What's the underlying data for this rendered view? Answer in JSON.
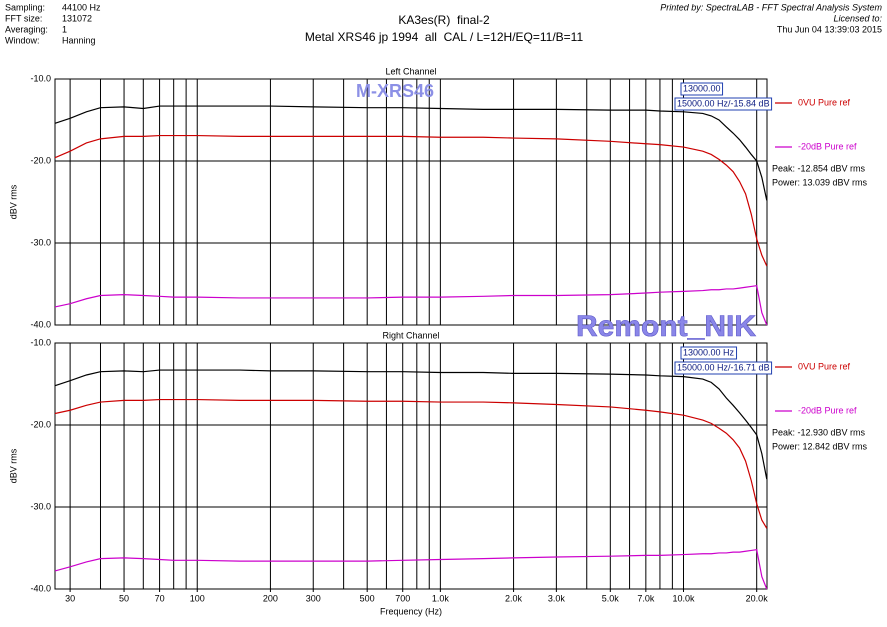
{
  "header": {
    "info_labels": [
      "Sampling:",
      "FFT size:",
      "Averaging:",
      "Window:"
    ],
    "info_values": [
      "44100 Hz",
      "131072",
      "1",
      "Hanning"
    ],
    "title": "KA3es(R)  final-2",
    "subtitle": "Metal XRS46 jp 1994  all  CAL / L=12H/EQ=11/B=11",
    "printed_by": "Printed by: SpectraLAB - FFT Spectral Analysis System",
    "licensed_to": "Licensed to:",
    "date": "Thu Jun 04 13:39:03 2015"
  },
  "watermarks": [
    "M-XRS46",
    "Remont_NIK"
  ],
  "chart_data": [
    {
      "type": "line",
      "title": "Left Channel",
      "ylabel": "dBV rms",
      "xscale": "log",
      "x": [
        26,
        30,
        35,
        40,
        50,
        60,
        70,
        80,
        100,
        150,
        200,
        300,
        500,
        700,
        1000,
        1500,
        2000,
        3000,
        5000,
        7000,
        8000,
        10000,
        12000,
        13000,
        14000,
        15000,
        16000,
        17000,
        18000,
        19000,
        20000,
        21000,
        22000
      ],
      "xlim": [
        26,
        22050
      ],
      "ylim": [
        -40,
        -10
      ],
      "yticks": [
        {
          "value": -40,
          "label": "-40.0"
        },
        {
          "value": -30,
          "label": "-30.0"
        },
        {
          "value": -20,
          "label": "-20.0"
        },
        {
          "value": -10,
          "label": "-10.0"
        }
      ],
      "xgrid": [
        30,
        40,
        50,
        60,
        70,
        80,
        90,
        100,
        200,
        300,
        400,
        500,
        600,
        700,
        800,
        900,
        1000,
        2000,
        3000,
        4000,
        5000,
        6000,
        7000,
        8000,
        9000,
        10000,
        20000
      ],
      "series": [
        {
          "color": "#000000",
          "values": [
            -15.4,
            -14.8,
            -14.0,
            -13.5,
            -13.4,
            -13.6,
            -13.3,
            -13.3,
            -13.3,
            -13.3,
            -13.3,
            -13.4,
            -13.5,
            -13.5,
            -13.6,
            -13.7,
            -13.7,
            -13.7,
            -13.8,
            -13.8,
            -13.9,
            -14.0,
            -14.2,
            -14.5,
            -15.0,
            -15.84,
            -16.6,
            -17.4,
            -18.3,
            -19.2,
            -20.0,
            -22.0,
            -24.8
          ]
        },
        {
          "name": "0VU Pure ref",
          "color": "#cc0000",
          "values": [
            -19.6,
            -18.8,
            -17.8,
            -17.3,
            -17.0,
            -17.0,
            -16.9,
            -16.9,
            -16.9,
            -17.0,
            -17.0,
            -17.0,
            -17.0,
            -17.0,
            -17.1,
            -17.1,
            -17.2,
            -17.3,
            -17.6,
            -17.9,
            -18.0,
            -18.3,
            -18.8,
            -19.2,
            -19.8,
            -20.5,
            -21.3,
            -22.5,
            -24.0,
            -26.5,
            -29.5,
            -31.5,
            -32.8
          ]
        },
        {
          "name": "-20dB Pure ref",
          "color": "#cc00cc",
          "values": [
            -37.8,
            -37.4,
            -36.8,
            -36.4,
            -36.3,
            -36.4,
            -36.5,
            -36.6,
            -36.6,
            -36.7,
            -36.7,
            -36.7,
            -36.7,
            -36.6,
            -36.6,
            -36.5,
            -36.4,
            -36.4,
            -36.3,
            -36.1,
            -36.0,
            -35.9,
            -35.8,
            -35.7,
            -35.7,
            -35.6,
            -35.6,
            -35.5,
            -35.4,
            -35.3,
            -35.2,
            -38.5,
            -40.0
          ]
        }
      ],
      "annotations": [
        "13000.00",
        "15000.00 Hz/-15.84 dB"
      ],
      "readouts": [
        "Peak: -12.854 dBV rms",
        "Power: 13.039 dBV rms"
      ]
    },
    {
      "type": "line",
      "title": "Right Channel",
      "ylabel": "dBV rms",
      "xlabel": "Frequency (Hz)",
      "xscale": "log",
      "x": [
        26,
        30,
        35,
        40,
        50,
        60,
        70,
        80,
        100,
        150,
        200,
        300,
        500,
        700,
        1000,
        1500,
        2000,
        3000,
        5000,
        7000,
        8000,
        10000,
        12000,
        13000,
        14000,
        15000,
        16000,
        17000,
        18000,
        19000,
        20000,
        21000,
        22000
      ],
      "xlim": [
        26,
        22050
      ],
      "ylim": [
        -40,
        -10
      ],
      "yticks": [
        {
          "value": -40,
          "label": "-40.0"
        },
        {
          "value": -30,
          "label": "-30.0"
        },
        {
          "value": -20,
          "label": "-20.0"
        },
        {
          "value": -10,
          "label": "-10.0"
        }
      ],
      "xgrid": [
        30,
        40,
        50,
        60,
        70,
        80,
        90,
        100,
        200,
        300,
        400,
        500,
        600,
        700,
        800,
        900,
        1000,
        2000,
        3000,
        4000,
        5000,
        6000,
        7000,
        8000,
        9000,
        10000,
        20000
      ],
      "xticks": [
        30,
        50,
        70,
        100,
        200,
        300,
        500,
        700,
        {
          "value": 1000,
          "label": "1.0k"
        },
        {
          "value": 2000,
          "label": "2.0k"
        },
        {
          "value": 3000,
          "label": "3.0k"
        },
        {
          "value": 5000,
          "label": "5.0k"
        },
        {
          "value": 7000,
          "label": "7.0k"
        },
        {
          "value": 10000,
          "label": "10.0k"
        },
        {
          "value": 20000,
          "label": "20.0k"
        }
      ],
      "series": [
        {
          "color": "#000000",
          "values": [
            -15.2,
            -14.6,
            -13.9,
            -13.5,
            -13.4,
            -13.5,
            -13.3,
            -13.3,
            -13.3,
            -13.3,
            -13.4,
            -13.4,
            -13.5,
            -13.5,
            -13.6,
            -13.6,
            -13.7,
            -13.7,
            -13.8,
            -13.9,
            -14.0,
            -14.1,
            -14.4,
            -14.8,
            -15.6,
            -16.71,
            -17.6,
            -18.5,
            -19.4,
            -20.3,
            -21.2,
            -23.5,
            -26.6
          ]
        },
        {
          "name": "0VU Pure ref",
          "color": "#cc0000",
          "values": [
            -18.6,
            -18.2,
            -17.6,
            -17.2,
            -17.0,
            -17.0,
            -16.9,
            -16.9,
            -16.9,
            -17.0,
            -17.0,
            -17.0,
            -17.1,
            -17.1,
            -17.2,
            -17.2,
            -17.3,
            -17.5,
            -17.8,
            -18.2,
            -18.4,
            -18.8,
            -19.4,
            -19.8,
            -20.4,
            -21.0,
            -21.8,
            -22.8,
            -24.4,
            -26.8,
            -29.6,
            -31.6,
            -32.6
          ]
        },
        {
          "name": "-20dB Pure ref",
          "color": "#cc00cc",
          "values": [
            -37.8,
            -37.3,
            -36.7,
            -36.3,
            -36.2,
            -36.3,
            -36.4,
            -36.5,
            -36.5,
            -36.6,
            -36.6,
            -36.6,
            -36.6,
            -36.5,
            -36.4,
            -36.3,
            -36.2,
            -36.1,
            -36.0,
            -35.9,
            -35.9,
            -35.8,
            -35.7,
            -35.7,
            -35.6,
            -35.6,
            -35.5,
            -35.5,
            -35.4,
            -35.3,
            -35.2,
            -38.5,
            -40.0
          ]
        }
      ],
      "annotations": [
        "13000.00 Hz",
        "15000.00 Hz/-16.71 dB"
      ],
      "readouts": [
        "Peak: -12.930 dBV rms",
        "Power: 12.842 dBV rms"
      ]
    }
  ]
}
